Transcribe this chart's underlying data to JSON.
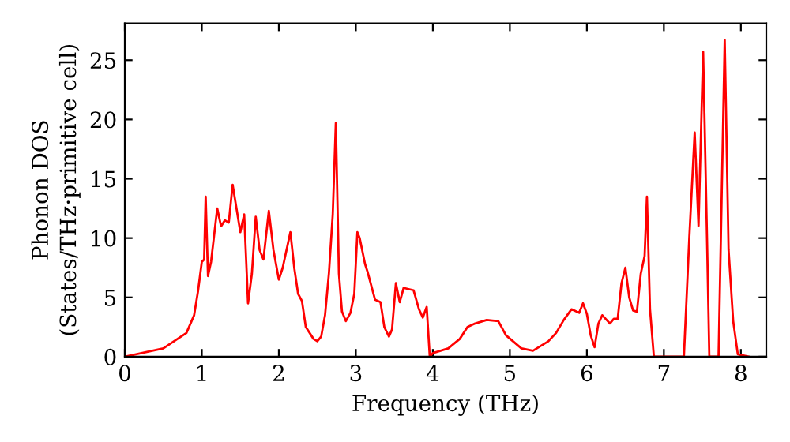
{
  "chart_data": {
    "type": "line",
    "xlabel": "Frequency (THz)",
    "ylabel": "Phonon DOS\n(States/THz·primitive cell)",
    "xlim": [
      0,
      8.33
    ],
    "ylim": [
      0,
      28.1
    ],
    "xticks": [
      0,
      1,
      2,
      3,
      4,
      5,
      6,
      7,
      8
    ],
    "yticks": [
      0,
      5,
      10,
      15,
      20,
      25
    ],
    "grid": false,
    "marker": "none",
    "line_style": "solid",
    "series": [
      {
        "color": "#ff0000",
        "x": [
          0,
          0.5,
          0.8,
          0.9,
          0.95,
          1.0,
          1.03,
          1.05,
          1.08,
          1.12,
          1.2,
          1.25,
          1.3,
          1.35,
          1.4,
          1.45,
          1.5,
          1.55,
          1.6,
          1.65,
          1.7,
          1.75,
          1.8,
          1.87,
          1.93,
          2.0,
          2.05,
          2.15,
          2.2,
          2.25,
          2.3,
          2.35,
          2.45,
          2.5,
          2.55,
          2.6,
          2.65,
          2.7,
          2.74,
          2.78,
          2.82,
          2.87,
          2.93,
          2.98,
          3.02,
          3.05,
          3.12,
          3.15,
          3.25,
          3.32,
          3.37,
          3.43,
          3.47,
          3.52,
          3.57,
          3.62,
          3.75,
          3.82,
          3.87,
          3.92,
          3.96,
          4.0,
          4.2,
          4.35,
          4.45,
          4.55,
          4.7,
          4.85,
          4.95,
          5.15,
          5.3,
          5.5,
          5.6,
          5.7,
          5.8,
          5.9,
          5.95,
          6.0,
          6.05,
          6.1,
          6.15,
          6.2,
          6.3,
          6.35,
          6.4,
          6.45,
          6.5,
          6.55,
          6.6,
          6.65,
          6.7,
          6.75,
          6.78,
          6.82,
          6.87,
          7.26,
          7.33,
          7.4,
          7.45,
          7.51,
          7.56,
          7.59,
          7.71,
          7.79,
          7.84,
          7.9,
          7.96,
          8.1
        ],
        "values": [
          0,
          0.7,
          2,
          3.5,
          5.5,
          8,
          8.2,
          13.5,
          6.8,
          8,
          12.5,
          11,
          11.5,
          11.3,
          14.5,
          12.5,
          10.5,
          12,
          4.5,
          7,
          11.8,
          9,
          8.2,
          12.3,
          9,
          6.5,
          7.5,
          10.5,
          7.5,
          5.3,
          4.7,
          2.5,
          1.5,
          1.3,
          1.7,
          3.5,
          7,
          12,
          19.7,
          7,
          3.8,
          3,
          3.7,
          5.3,
          10.5,
          10,
          7.8,
          7.2,
          4.8,
          4.6,
          2.5,
          1.7,
          2.3,
          6.2,
          4.6,
          5.8,
          5.6,
          4,
          3.3,
          4.2,
          0,
          0.3,
          0.7,
          1.5,
          2.5,
          2.8,
          3.1,
          3,
          1.8,
          0.7,
          0.5,
          1.3,
          2,
          3.1,
          4,
          3.7,
          4.5,
          3.6,
          1.8,
          0.8,
          2.8,
          3.5,
          2.8,
          3.2,
          3.2,
          6.2,
          7.5,
          5,
          3.9,
          3.8,
          7,
          8.5,
          13.5,
          4,
          0,
          0,
          10,
          18.9,
          11,
          25.7,
          10,
          0,
          0,
          26.7,
          9,
          3,
          0.2,
          0
        ]
      }
    ]
  }
}
